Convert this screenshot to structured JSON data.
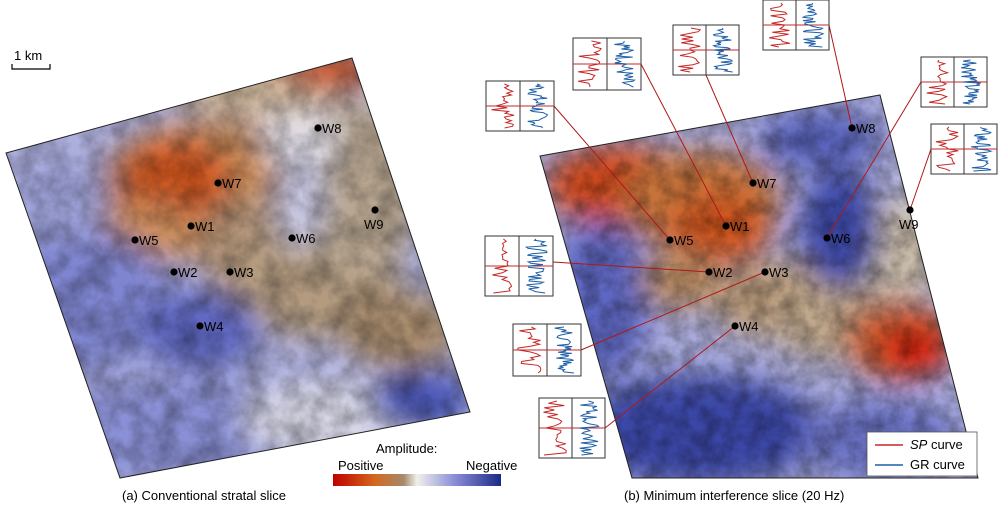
{
  "scale_bar": {
    "label": "1 km"
  },
  "panels": [
    {
      "id": "a",
      "caption": "(a) Conventional stratal slice"
    },
    {
      "id": "b",
      "caption": "(b) Minimum interference slice (20 Hz)"
    }
  ],
  "wells": [
    "W1",
    "W2",
    "W3",
    "W4",
    "W5",
    "W6",
    "W7",
    "W8",
    "W9"
  ],
  "colorbar": {
    "title": "Amplitude:",
    "positive_label": "Positive",
    "negative_label": "Negative",
    "colors": [
      "#c00000",
      "#d2691e",
      "#a5896b",
      "#f2f0ec",
      "#8b8fd8",
      "#1b2a86"
    ]
  },
  "legend": {
    "items": [
      {
        "label_italic": "SP",
        "label_rest": " curve",
        "color": "#c62828"
      },
      {
        "label_italic": "",
        "label_rest": "GR curve",
        "color": "#1f5fa8"
      }
    ]
  }
}
